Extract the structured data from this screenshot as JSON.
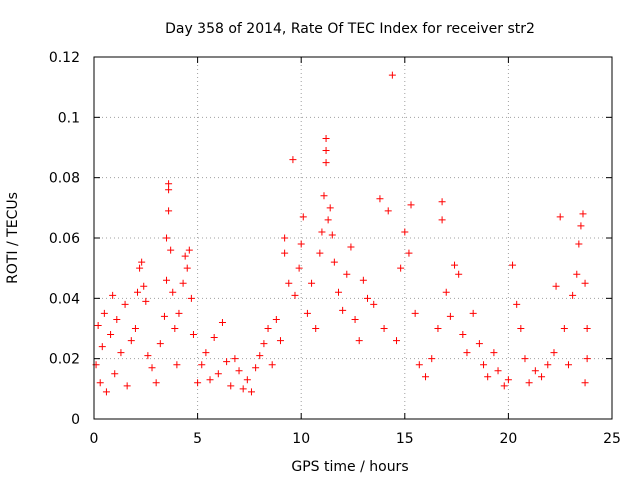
{
  "chart_data": {
    "type": "scatter",
    "title": "Day 358 of 2014, Rate Of TEC Index for receiver str2",
    "xlabel": "GPS time / hours",
    "ylabel": "ROTI / TECUs",
    "xlim": [
      0,
      25
    ],
    "ylim": [
      0,
      0.12
    ],
    "xticks": [
      0,
      5,
      10,
      15,
      20,
      25
    ],
    "xtick_labels": [
      "0",
      "5",
      "10",
      "15",
      "20",
      "25"
    ],
    "yticks": [
      0,
      0.02,
      0.04,
      0.06,
      0.08,
      0.1,
      0.12
    ],
    "ytick_labels": [
      "0",
      "0.02",
      "0.04",
      "0.06",
      "0.08",
      "0.1",
      "0.12"
    ],
    "grid": true,
    "marker": "+",
    "marker_color": "#ff0000",
    "series": [
      {
        "name": "ROTI",
        "points": [
          [
            0.1,
            0.018
          ],
          [
            0.2,
            0.031
          ],
          [
            0.3,
            0.012
          ],
          [
            0.4,
            0.024
          ],
          [
            0.5,
            0.035
          ],
          [
            0.6,
            0.009
          ],
          [
            0.8,
            0.028
          ],
          [
            0.9,
            0.041
          ],
          [
            1.0,
            0.015
          ],
          [
            1.1,
            0.033
          ],
          [
            1.3,
            0.022
          ],
          [
            1.5,
            0.038
          ],
          [
            1.6,
            0.011
          ],
          [
            1.8,
            0.026
          ],
          [
            2.0,
            0.03
          ],
          [
            2.1,
            0.042
          ],
          [
            2.2,
            0.05
          ],
          [
            2.3,
            0.052
          ],
          [
            2.4,
            0.044
          ],
          [
            2.5,
            0.039
          ],
          [
            2.6,
            0.021
          ],
          [
            2.8,
            0.017
          ],
          [
            3.0,
            0.012
          ],
          [
            3.2,
            0.025
          ],
          [
            3.4,
            0.034
          ],
          [
            3.5,
            0.046
          ],
          [
            3.5,
            0.06
          ],
          [
            3.6,
            0.069
          ],
          [
            3.6,
            0.076
          ],
          [
            3.6,
            0.078
          ],
          [
            3.7,
            0.056
          ],
          [
            3.8,
            0.042
          ],
          [
            3.9,
            0.03
          ],
          [
            4.0,
            0.018
          ],
          [
            4.1,
            0.035
          ],
          [
            4.3,
            0.045
          ],
          [
            4.4,
            0.054
          ],
          [
            4.5,
            0.05
          ],
          [
            4.6,
            0.056
          ],
          [
            4.7,
            0.04
          ],
          [
            4.8,
            0.028
          ],
          [
            5.0,
            0.012
          ],
          [
            5.2,
            0.018
          ],
          [
            5.4,
            0.022
          ],
          [
            5.6,
            0.013
          ],
          [
            5.8,
            0.027
          ],
          [
            6.0,
            0.015
          ],
          [
            6.2,
            0.032
          ],
          [
            6.4,
            0.019
          ],
          [
            6.6,
            0.011
          ],
          [
            6.8,
            0.02
          ],
          [
            7.0,
            0.016
          ],
          [
            7.2,
            0.01
          ],
          [
            7.4,
            0.013
          ],
          [
            7.6,
            0.009
          ],
          [
            7.8,
            0.017
          ],
          [
            8.0,
            0.021
          ],
          [
            8.2,
            0.025
          ],
          [
            8.4,
            0.03
          ],
          [
            8.6,
            0.018
          ],
          [
            8.8,
            0.033
          ],
          [
            9.0,
            0.026
          ],
          [
            9.2,
            0.06
          ],
          [
            9.2,
            0.055
          ],
          [
            9.4,
            0.045
          ],
          [
            9.6,
            0.086
          ],
          [
            9.7,
            0.041
          ],
          [
            9.9,
            0.05
          ],
          [
            10.0,
            0.058
          ],
          [
            10.1,
            0.067
          ],
          [
            10.3,
            0.035
          ],
          [
            10.5,
            0.045
          ],
          [
            10.7,
            0.03
          ],
          [
            10.9,
            0.055
          ],
          [
            11.0,
            0.062
          ],
          [
            11.1,
            0.074
          ],
          [
            11.2,
            0.085
          ],
          [
            11.2,
            0.089
          ],
          [
            11.2,
            0.093
          ],
          [
            11.3,
            0.066
          ],
          [
            11.4,
            0.07
          ],
          [
            11.5,
            0.061
          ],
          [
            11.6,
            0.052
          ],
          [
            11.8,
            0.042
          ],
          [
            12.0,
            0.036
          ],
          [
            12.2,
            0.048
          ],
          [
            12.4,
            0.057
          ],
          [
            12.6,
            0.033
          ],
          [
            12.8,
            0.026
          ],
          [
            13.0,
            0.046
          ],
          [
            13.2,
            0.04
          ],
          [
            13.5,
            0.038
          ],
          [
            13.8,
            0.073
          ],
          [
            14.0,
            0.03
          ],
          [
            14.2,
            0.069
          ],
          [
            14.4,
            0.114
          ],
          [
            14.6,
            0.026
          ],
          [
            14.8,
            0.05
          ],
          [
            15.0,
            0.062
          ],
          [
            15.2,
            0.055
          ],
          [
            15.3,
            0.071
          ],
          [
            15.5,
            0.035
          ],
          [
            15.7,
            0.018
          ],
          [
            16.0,
            0.014
          ],
          [
            16.3,
            0.02
          ],
          [
            16.6,
            0.03
          ],
          [
            16.8,
            0.072
          ],
          [
            16.8,
            0.066
          ],
          [
            17.0,
            0.042
          ],
          [
            17.2,
            0.034
          ],
          [
            17.4,
            0.051
          ],
          [
            17.6,
            0.048
          ],
          [
            17.8,
            0.028
          ],
          [
            18.0,
            0.022
          ],
          [
            18.3,
            0.035
          ],
          [
            18.6,
            0.025
          ],
          [
            18.8,
            0.018
          ],
          [
            19.0,
            0.014
          ],
          [
            19.3,
            0.022
          ],
          [
            19.5,
            0.016
          ],
          [
            19.8,
            0.011
          ],
          [
            20.0,
            0.013
          ],
          [
            20.2,
            0.051
          ],
          [
            20.4,
            0.038
          ],
          [
            20.6,
            0.03
          ],
          [
            20.8,
            0.02
          ],
          [
            21.0,
            0.012
          ],
          [
            21.3,
            0.016
          ],
          [
            21.6,
            0.014
          ],
          [
            21.9,
            0.018
          ],
          [
            22.2,
            0.022
          ],
          [
            22.3,
            0.044
          ],
          [
            22.5,
            0.067
          ],
          [
            22.7,
            0.03
          ],
          [
            22.9,
            0.018
          ],
          [
            23.1,
            0.041
          ],
          [
            23.3,
            0.048
          ],
          [
            23.4,
            0.058
          ],
          [
            23.5,
            0.064
          ],
          [
            23.6,
            0.068
          ],
          [
            23.7,
            0.045
          ],
          [
            23.8,
            0.03
          ],
          [
            23.8,
            0.02
          ],
          [
            23.7,
            0.012
          ]
        ]
      }
    ]
  }
}
